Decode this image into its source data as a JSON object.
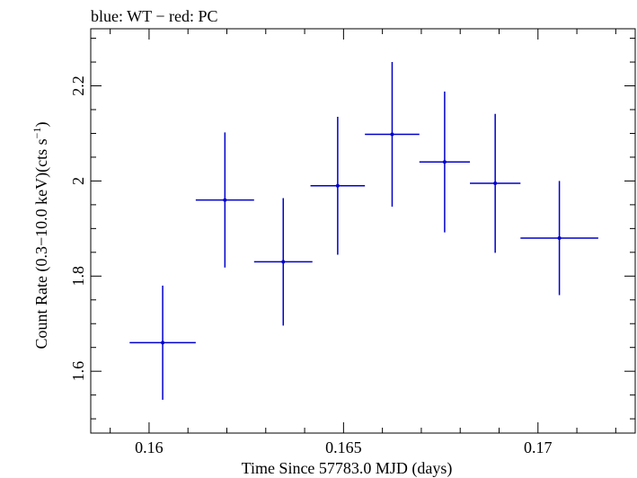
{
  "chart_data": {
    "type": "scatter",
    "title": "blue: WT − red: PC",
    "xlabel": "Time Since 57783.0 MJD (days)",
    "ylabel_main": "Count Rate (0.3−10.0 keV)(cts s",
    "ylabel_sup": "−1",
    "ylabel_close": ")",
    "xlim": [
      0.1585,
      0.1725
    ],
    "ylim": [
      1.47,
      2.32
    ],
    "xticks": [
      0.16,
      0.165,
      0.17
    ],
    "xtick_labels": [
      "0.16",
      "0.165",
      "0.17"
    ],
    "yticks": [
      1.6,
      1.8,
      2.0,
      2.2
    ],
    "ytick_labels": [
      "1.6",
      "1.8",
      "2",
      "2.2"
    ],
    "grid": false,
    "series": [
      {
        "color": "#0000cc",
        "points": [
          {
            "x": 0.16035,
            "y": 1.66,
            "xerr": 0.00085,
            "yerr": 0.12
          },
          {
            "x": 0.16195,
            "y": 1.96,
            "xerr": 0.00075,
            "yerr": 0.142
          },
          {
            "x": 0.16345,
            "y": 1.83,
            "xerr": 0.00075,
            "yerr": 0.134
          },
          {
            "x": 0.16485,
            "y": 1.99,
            "xerr": 0.0007,
            "yerr": 0.145
          },
          {
            "x": 0.16625,
            "y": 2.098,
            "xerr": 0.0007,
            "yerr": 0.152
          },
          {
            "x": 0.1676,
            "y": 2.04,
            "xerr": 0.00065,
            "yerr": 0.148
          },
          {
            "x": 0.1689,
            "y": 1.995,
            "xerr": 0.00065,
            "yerr": 0.146
          },
          {
            "x": 0.17055,
            "y": 1.88,
            "xerr": 0.001,
            "yerr": 0.12
          }
        ]
      }
    ]
  }
}
